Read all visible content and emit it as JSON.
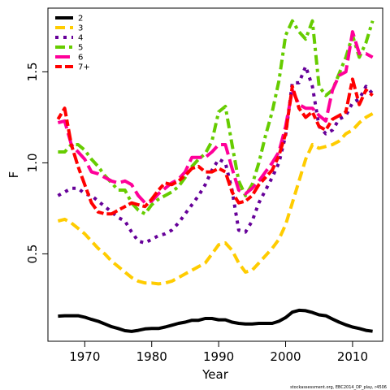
{
  "chart_data": {
    "type": "line",
    "title": "",
    "xlabel": "Year",
    "ylabel": "F",
    "xlim": [
      1964.5,
      2014.5
    ],
    "ylim": [
      0.02,
      1.85
    ],
    "xticks": [
      1970,
      1980,
      1990,
      2000,
      2010
    ],
    "yticks": [
      0.5,
      1.0,
      1.5
    ],
    "ytick_labels": [
      "0.5",
      "1.0",
      "1.5"
    ],
    "grid": false,
    "legend_position": "top-left",
    "footnote": "stockassessment.org, EBC2014_DP_play, r4506",
    "series": [
      {
        "name": "2",
        "color": "#000000",
        "dash": "solid",
        "x": [
          1966,
          1967,
          1968,
          1969,
          1970,
          1971,
          1972,
          1973,
          1974,
          1975,
          1976,
          1977,
          1978,
          1979,
          1980,
          1981,
          1982,
          1983,
          1984,
          1985,
          1986,
          1987,
          1988,
          1989,
          1990,
          1991,
          1992,
          1993,
          1994,
          1995,
          1996,
          1997,
          1998,
          1999,
          2000,
          2001,
          2002,
          2003,
          2004,
          2005,
          2006,
          2007,
          2008,
          2009,
          2010,
          2011,
          2012,
          2013
        ],
        "values": [
          0.158,
          0.16,
          0.16,
          0.16,
          0.152,
          0.14,
          0.13,
          0.115,
          0.1,
          0.09,
          0.078,
          0.074,
          0.08,
          0.088,
          0.09,
          0.09,
          0.098,
          0.108,
          0.118,
          0.125,
          0.135,
          0.135,
          0.145,
          0.145,
          0.138,
          0.138,
          0.125,
          0.118,
          0.115,
          0.115,
          0.118,
          0.118,
          0.118,
          0.13,
          0.15,
          0.18,
          0.19,
          0.188,
          0.178,
          0.165,
          0.16,
          0.142,
          0.125,
          0.11,
          0.098,
          0.09,
          0.08,
          0.075
        ]
      },
      {
        "name": "3",
        "color": "#ffcc00",
        "dash": "dash",
        "x": [
          1966,
          1967,
          1968,
          1969,
          1970,
          1971,
          1972,
          1973,
          1974,
          1975,
          1976,
          1977,
          1978,
          1979,
          1980,
          1981,
          1982,
          1983,
          1984,
          1985,
          1986,
          1987,
          1988,
          1989,
          1990,
          1991,
          1992,
          1993,
          1994,
          1995,
          1996,
          1997,
          1998,
          1999,
          2000,
          2001,
          2002,
          2003,
          2004,
          2005,
          2006,
          2007,
          2008,
          2009,
          2010,
          2011,
          2012,
          2013
        ],
        "values": [
          0.68,
          0.69,
          0.67,
          0.64,
          0.61,
          0.57,
          0.53,
          0.5,
          0.46,
          0.43,
          0.4,
          0.37,
          0.35,
          0.34,
          0.34,
          0.335,
          0.34,
          0.35,
          0.37,
          0.39,
          0.41,
          0.43,
          0.45,
          0.5,
          0.55,
          0.56,
          0.52,
          0.45,
          0.4,
          0.41,
          0.45,
          0.49,
          0.53,
          0.58,
          0.66,
          0.78,
          0.9,
          1.02,
          1.1,
          1.08,
          1.09,
          1.1,
          1.12,
          1.16,
          1.18,
          1.22,
          1.25,
          1.27
        ]
      },
      {
        "name": "4",
        "color": "#660099",
        "dash": "dot",
        "x": [
          1966,
          1967,
          1968,
          1969,
          1970,
          1971,
          1972,
          1973,
          1974,
          1975,
          1976,
          1977,
          1978,
          1979,
          1980,
          1981,
          1982,
          1983,
          1984,
          1985,
          1986,
          1987,
          1988,
          1989,
          1990,
          1991,
          1992,
          1993,
          1994,
          1995,
          1996,
          1997,
          1998,
          1999,
          2000,
          2001,
          2002,
          2003,
          2004,
          2005,
          2006,
          2007,
          2008,
          2009,
          2010,
          2011,
          2012,
          2013
        ],
        "values": [
          0.82,
          0.84,
          0.86,
          0.86,
          0.83,
          0.82,
          0.79,
          0.76,
          0.73,
          0.7,
          0.68,
          0.62,
          0.57,
          0.56,
          0.58,
          0.6,
          0.61,
          0.63,
          0.67,
          0.72,
          0.77,
          0.82,
          0.88,
          0.96,
          1.02,
          1.0,
          0.85,
          0.63,
          0.62,
          0.68,
          0.78,
          0.85,
          0.92,
          1.0,
          1.15,
          1.44,
          1.44,
          1.53,
          1.42,
          1.2,
          1.16,
          1.18,
          1.24,
          1.26,
          1.33,
          1.35,
          1.42,
          1.38
        ]
      },
      {
        "name": "5",
        "color": "#66cc00",
        "dash": "dashdot",
        "x": [
          1966,
          1967,
          1968,
          1969,
          1970,
          1971,
          1972,
          1973,
          1974,
          1975,
          1976,
          1977,
          1978,
          1979,
          1980,
          1981,
          1982,
          1983,
          1984,
          1985,
          1986,
          1987,
          1988,
          1989,
          1990,
          1991,
          1992,
          1993,
          1994,
          1995,
          1996,
          1997,
          1998,
          1999,
          2000,
          2001,
          2002,
          2003,
          2004,
          2005,
          2006,
          2007,
          2008,
          2009,
          2010,
          2011,
          2012,
          2013
        ],
        "values": [
          1.06,
          1.06,
          1.1,
          1.1,
          1.07,
          1.02,
          0.98,
          0.93,
          0.89,
          0.85,
          0.85,
          0.78,
          0.74,
          0.72,
          0.77,
          0.8,
          0.82,
          0.84,
          0.87,
          0.92,
          0.98,
          1.02,
          1.05,
          1.12,
          1.28,
          1.31,
          1.1,
          0.9,
          0.82,
          0.88,
          1.0,
          1.15,
          1.28,
          1.45,
          1.7,
          1.78,
          1.72,
          1.68,
          1.78,
          1.42,
          1.37,
          1.4,
          1.49,
          1.58,
          1.7,
          1.58,
          1.66,
          1.78
        ]
      },
      {
        "name": "6",
        "color": "#ff0099",
        "dash": "longdash",
        "x": [
          1966,
          1967,
          1968,
          1969,
          1970,
          1971,
          1972,
          1973,
          1974,
          1975,
          1976,
          1977,
          1978,
          1979,
          1980,
          1981,
          1982,
          1983,
          1984,
          1985,
          1986,
          1987,
          1988,
          1989,
          1990,
          1991,
          1992,
          1993,
          1994,
          1995,
          1996,
          1997,
          1998,
          1999,
          2000,
          2001,
          2002,
          2003,
          2004,
          2005,
          2006,
          2007,
          2008,
          2009,
          2010,
          2011,
          2012,
          2013
        ],
        "values": [
          1.22,
          1.23,
          1.1,
          1.06,
          1.02,
          0.95,
          0.94,
          0.92,
          0.9,
          0.89,
          0.9,
          0.88,
          0.82,
          0.78,
          0.79,
          0.83,
          0.86,
          0.89,
          0.91,
          0.95,
          1.03,
          1.03,
          1.03,
          1.06,
          1.1,
          1.1,
          0.97,
          0.85,
          0.83,
          0.86,
          0.9,
          0.95,
          1.0,
          1.06,
          1.2,
          1.4,
          1.32,
          1.3,
          1.3,
          1.26,
          1.23,
          1.4,
          1.48,
          1.5,
          1.72,
          1.6,
          1.6,
          1.58
        ]
      },
      {
        "name": "7+",
        "color": "#ff0000",
        "dash": "twodash",
        "x": [
          1966,
          1967,
          1968,
          1969,
          1970,
          1971,
          1972,
          1973,
          1974,
          1975,
          1976,
          1977,
          1978,
          1979,
          1980,
          1981,
          1982,
          1983,
          1984,
          1985,
          1986,
          1987,
          1988,
          1989,
          1990,
          1991,
          1992,
          1993,
          1994,
          1995,
          1996,
          1997,
          1998,
          1999,
          2000,
          2001,
          2002,
          2003,
          2004,
          2005,
          2006,
          2007,
          2008,
          2009,
          2010,
          2011,
          2012,
          2013
        ],
        "values": [
          1.24,
          1.3,
          1.1,
          0.98,
          0.88,
          0.78,
          0.73,
          0.72,
          0.72,
          0.74,
          0.76,
          0.78,
          0.77,
          0.76,
          0.8,
          0.85,
          0.89,
          0.88,
          0.9,
          0.93,
          0.97,
          0.98,
          0.95,
          0.95,
          0.97,
          0.95,
          0.84,
          0.78,
          0.79,
          0.82,
          0.88,
          0.92,
          0.96,
          1.04,
          1.16,
          1.42,
          1.3,
          1.25,
          1.28,
          1.2,
          1.18,
          1.24,
          1.26,
          1.28,
          1.46,
          1.32,
          1.4,
          1.37
        ]
      }
    ]
  }
}
